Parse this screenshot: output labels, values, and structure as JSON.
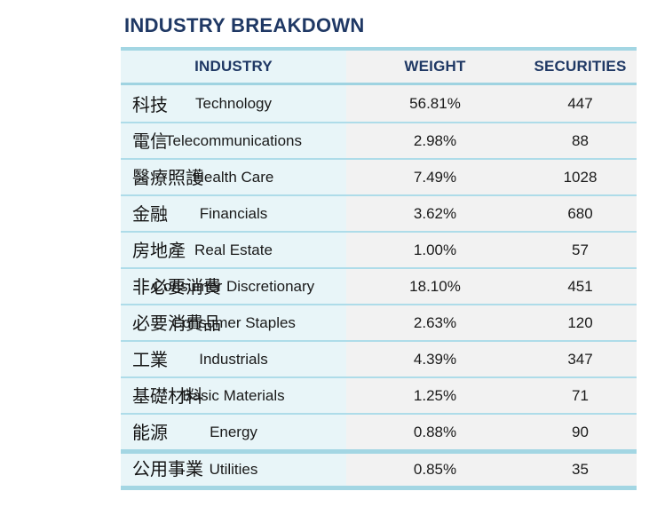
{
  "title": "INDUSTRY BREAKDOWN",
  "columns": {
    "industry": "INDUSTRY",
    "weight": "WEIGHT",
    "securities": "SECURITIES"
  },
  "rows": [
    {
      "zh": "科技",
      "industry": "Technology",
      "weight": "56.81%",
      "securities": "447"
    },
    {
      "zh": "電信",
      "industry": "Telecommunications",
      "weight": "2.98%",
      "securities": "88"
    },
    {
      "zh": "醫療照護",
      "industry": "Health Care",
      "weight": "7.49%",
      "securities": "1028"
    },
    {
      "zh": "金融",
      "industry": "Financials",
      "weight": "3.62%",
      "securities": "680"
    },
    {
      "zh": "房地產",
      "industry": "Real Estate",
      "weight": "1.00%",
      "securities": "57"
    },
    {
      "zh": "非必要消費",
      "industry": "Consumer Discretionary",
      "weight": "18.10%",
      "securities": "451"
    },
    {
      "zh": "必要消費品",
      "industry": "Consumer Staples",
      "weight": "2.63%",
      "securities": "120"
    },
    {
      "zh": "工業",
      "industry": "Industrials",
      "weight": "4.39%",
      "securities": "347"
    },
    {
      "zh": "基礎材料",
      "industry": "Basic Materials",
      "weight": "1.25%",
      "securities": "71"
    },
    {
      "zh": "能源",
      "industry": "Energy",
      "weight": "0.88%",
      "securities": "90"
    },
    {
      "zh": "公用事業",
      "industry": "Utilities",
      "weight": "0.85%",
      "securities": "35"
    }
  ],
  "colors": {
    "accent_navy": "#1f3864",
    "border_cyan": "#a3d6e3",
    "separator_cyan": "#aedce9",
    "industry_column_bg": "#e8f5f8",
    "value_column_bg": "#f2f2f2"
  }
}
